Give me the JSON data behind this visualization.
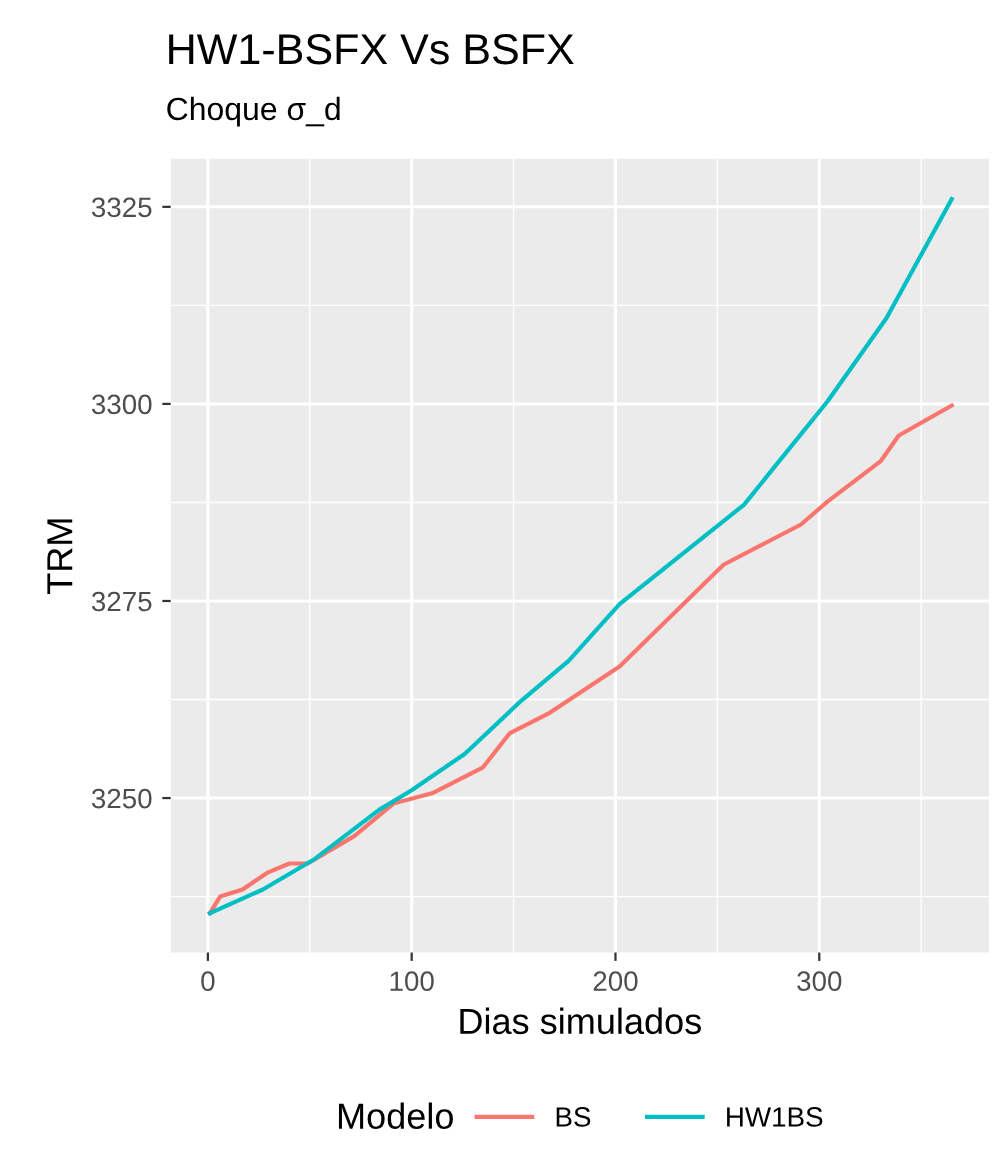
{
  "chart_data": {
    "type": "line",
    "title": "HW1-BSFX Vs BSFX",
    "subtitle": "Choque σ_d",
    "xlabel": "Dias simulados",
    "ylabel": "TRM",
    "legend_title": "Modelo",
    "series": [
      {
        "name": "BS",
        "color": "#f8766d",
        "x": [
          1,
          6,
          17,
          29,
          40,
          49,
          72,
          91,
          110,
          135,
          148,
          167,
          202,
          253,
          291,
          304,
          330,
          339,
          365
        ],
        "values": [
          3235.4,
          3237.5,
          3238.4,
          3240.5,
          3241.7,
          3241.7,
          3245.2,
          3249.3,
          3250.6,
          3253.9,
          3258.2,
          3260.7,
          3266.7,
          3279.6,
          3284.7,
          3287.6,
          3292.7,
          3296,
          3299.8
        ]
      },
      {
        "name": "HW1BS",
        "color": "#00bfc4",
        "x": [
          1,
          27,
          52,
          84,
          100,
          126,
          154,
          177,
          202,
          263,
          304,
          333,
          365
        ],
        "values": [
          3235.4,
          3238.4,
          3242.2,
          3248.5,
          3251,
          3255.6,
          3262.4,
          3267.4,
          3274.6,
          3287.2,
          3300.3,
          3310.9,
          3326
        ]
      }
    ],
    "xlim": [
      -18.25,
      383.25
    ],
    "ylim": [
      3230.4,
      3331.1
    ],
    "xticks": [
      0,
      100,
      200,
      300
    ],
    "yticks": [
      3250,
      3275,
      3300,
      3325
    ],
    "grid": true,
    "legend": "bottom",
    "line_style": "solid"
  }
}
